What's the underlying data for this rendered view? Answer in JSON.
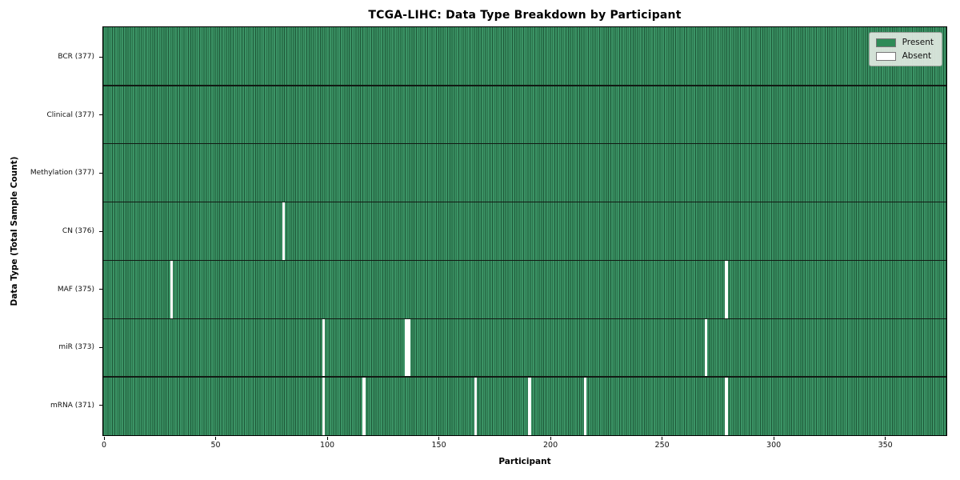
{
  "chart_data": {
    "type": "heatmap",
    "title": "TCGA-LIHC: Data Type Breakdown by Participant",
    "xlabel": "Participant",
    "ylabel": "Data Type (Total Sample Count)",
    "n_participants": 377,
    "x_ticks": [
      0,
      50,
      100,
      150,
      200,
      250,
      300,
      350
    ],
    "xlim": [
      0,
      377
    ],
    "grid": "cell-edges",
    "legend_position": "upper right",
    "rows": [
      {
        "id": "bcr",
        "label": "BCR (377)",
        "total": 377,
        "absent_participants": []
      },
      {
        "id": "clinical",
        "label": "Clinical (377)",
        "total": 377,
        "absent_participants": []
      },
      {
        "id": "methylation",
        "label": "Methylation (377)",
        "total": 377,
        "absent_participants": []
      },
      {
        "id": "cn",
        "label": "CN (376)",
        "total": 376,
        "absent_participants": [
          80
        ]
      },
      {
        "id": "maf",
        "label": "MAF (375)",
        "total": 375,
        "absent_participants": [
          30,
          278
        ]
      },
      {
        "id": "mir",
        "label": "miR (373)",
        "total": 373,
        "absent_participants": [
          98,
          135,
          136,
          269
        ]
      },
      {
        "id": "mrna",
        "label": "mRNA (371)",
        "total": 371,
        "absent_participants": [
          98,
          116,
          166,
          190,
          215,
          278
        ]
      }
    ],
    "legend": [
      {
        "label": "Present",
        "color": "#2e8b57"
      },
      {
        "label": "Absent",
        "color": "#ffffff"
      }
    ],
    "colors": {
      "present_fill": "#3b9365",
      "cell_edge": "#1e5838",
      "absent_fill": "#ffffff",
      "row_divider": "#121a14",
      "axes_border": "#000000"
    }
  }
}
